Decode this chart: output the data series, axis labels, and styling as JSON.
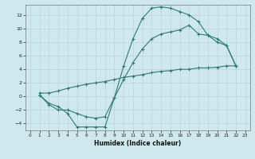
{
  "xlabel": "Humidex (Indice chaleur)",
  "bg_color": "#cfe8ed",
  "grid_color": "#b8d5db",
  "line_color": "#2e7b6e",
  "xlim": [
    -0.5,
    23.5
  ],
  "ylim": [
    -5,
    13.5
  ],
  "xticks": [
    0,
    1,
    2,
    3,
    4,
    5,
    6,
    7,
    8,
    9,
    10,
    11,
    12,
    13,
    14,
    15,
    16,
    17,
    18,
    19,
    20,
    21,
    22,
    23
  ],
  "yticks": [
    -4,
    -2,
    0,
    2,
    4,
    6,
    8,
    10,
    12
  ],
  "l1x": [
    1,
    2,
    3,
    4,
    5,
    6,
    7,
    8,
    9,
    10,
    11,
    12,
    13,
    14,
    15,
    16,
    17,
    18,
    19,
    20,
    21,
    22
  ],
  "l1y": [
    0.2,
    -1.0,
    -1.5,
    -2.5,
    -4.5,
    -4.5,
    -4.5,
    -4.5,
    -0.2,
    4.5,
    8.5,
    11.5,
    13.0,
    13.2,
    13.0,
    12.5,
    12.0,
    11.0,
    9.0,
    8.0,
    7.5,
    4.5
  ],
  "l2x": [
    1,
    2,
    3,
    4,
    5,
    6,
    7,
    8,
    9,
    10,
    11,
    12,
    13,
    14,
    15,
    16,
    17,
    18,
    19,
    20,
    21,
    22
  ],
  "l2y": [
    0.2,
    -1.2,
    -2.0,
    -2.0,
    -2.5,
    -3.0,
    -3.2,
    -3.0,
    -0.2,
    2.5,
    5.0,
    7.0,
    8.5,
    9.2,
    9.5,
    9.8,
    10.5,
    9.2,
    9.0,
    8.5,
    7.5,
    4.5
  ],
  "l3x": [
    1,
    2,
    3,
    4,
    5,
    6,
    7,
    8,
    9,
    10,
    11,
    12,
    13,
    14,
    15,
    16,
    17,
    18,
    19,
    20,
    21,
    22
  ],
  "l3y": [
    0.5,
    0.5,
    0.8,
    1.2,
    1.5,
    1.8,
    2.0,
    2.2,
    2.5,
    2.8,
    3.0,
    3.2,
    3.5,
    3.7,
    3.8,
    4.0,
    4.0,
    4.2,
    4.2,
    4.3,
    4.5,
    4.5
  ]
}
